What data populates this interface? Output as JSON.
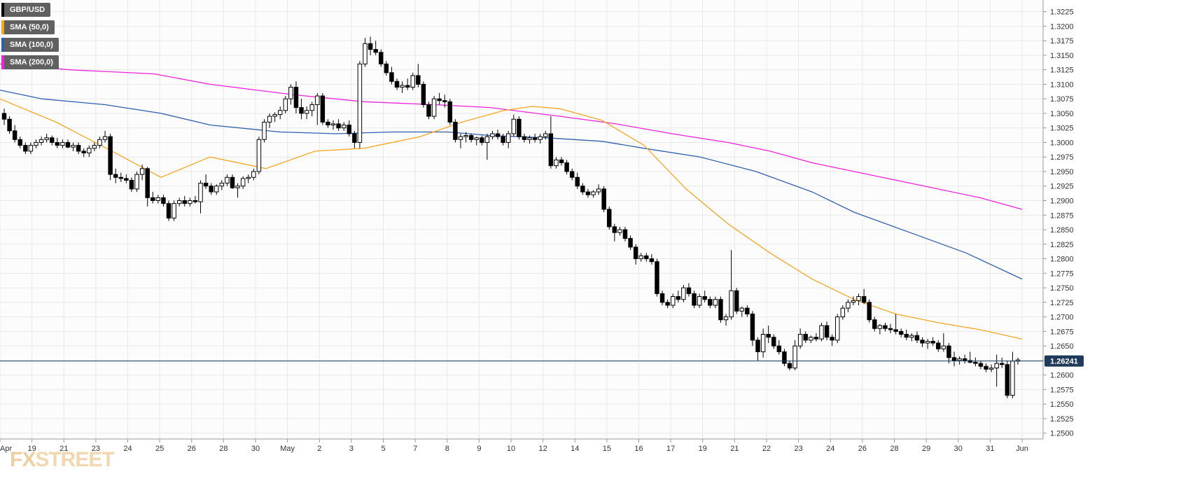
{
  "chart_data": {
    "type": "candlestick",
    "symbol": "GBP/USD",
    "legend": [
      {
        "label": "GBP/USD",
        "color": "#000000"
      },
      {
        "label": "SMA (50,0)",
        "color": "#f5a623"
      },
      {
        "label": "SMA (100,0)",
        "color": "#2e5fae"
      },
      {
        "label": "SMA (200,0)",
        "color": "#ee22dd"
      }
    ],
    "colors": {
      "up": "#ffffff",
      "down": "#000000",
      "sma50": "#f5a623",
      "sma100": "#2e5fae",
      "sma200": "#ee22dd",
      "price_line": "#1f3a5a",
      "price_badge": "#1f3a5a",
      "grid": "#e8e8e8"
    },
    "ylim": [
      1.249,
      1.3245
    ],
    "y_ticks": [
      "1.2500",
      "1.2525",
      "1.2550",
      "1.2575",
      "1.2600",
      "1.2625",
      "1.2650",
      "1.2675",
      "1.2700",
      "1.2725",
      "1.2750",
      "1.2775",
      "1.2800",
      "1.2825",
      "1.2850",
      "1.2875",
      "1.2900",
      "1.2925",
      "1.2950",
      "1.2975",
      "1.3000",
      "1.3025",
      "1.3050",
      "1.3075",
      "1.3100",
      "1.3125",
      "1.3150",
      "1.3175",
      "1.3200",
      "1.3225"
    ],
    "x_ticks": [
      "Apr",
      "19",
      "21",
      "23",
      "24",
      "25",
      "26",
      "28",
      "30",
      "May",
      "2",
      "3",
      "5",
      "7",
      "8",
      "9",
      "10",
      "12",
      "14",
      "15",
      "16",
      "17",
      "19",
      "21",
      "22",
      "23",
      "24",
      "26",
      "28",
      "29",
      "30",
      "31",
      "Jun"
    ],
    "current_price": "1.26241",
    "ohlc": [
      [
        1.305,
        1.3058,
        1.303,
        1.304
      ],
      [
        1.304,
        1.3045,
        1.3015,
        1.302
      ],
      [
        1.302,
        1.303,
        1.3,
        1.3005
      ],
      [
        1.3005,
        1.301,
        1.299,
        1.2995
      ],
      [
        1.2995,
        1.3,
        1.298,
        1.2985
      ],
      [
        1.2985,
        1.3,
        1.298,
        1.2995
      ],
      [
        1.2995,
        1.3005,
        1.299,
        1.3
      ],
      [
        1.3,
        1.301,
        1.2995,
        1.3005
      ],
      [
        1.3005,
        1.3015,
        1.3,
        1.3008
      ],
      [
        1.3008,
        1.3012,
        1.2995,
        1.3
      ],
      [
        1.3,
        1.3008,
        1.299,
        1.2995
      ],
      [
        1.2995,
        1.3005,
        1.299,
        1.3
      ],
      [
        1.3,
        1.3005,
        1.299,
        1.2992
      ],
      [
        1.2992,
        1.3,
        1.2985,
        1.2995
      ],
      [
        1.2995,
        1.3,
        1.298,
        1.2985
      ],
      [
        1.2985,
        1.299,
        1.2975,
        1.2982
      ],
      [
        1.2982,
        1.2995,
        1.2975,
        1.299
      ],
      [
        1.299,
        1.3,
        1.2985,
        1.2995
      ],
      [
        1.2995,
        1.301,
        1.299,
        1.3005
      ],
      [
        1.3005,
        1.302,
        1.3,
        1.301
      ],
      [
        1.301,
        1.3015,
        1.2935,
        1.2945
      ],
      [
        1.2945,
        1.2955,
        1.293,
        1.294
      ],
      [
        1.294,
        1.2948,
        1.2932,
        1.2938
      ],
      [
        1.2938,
        1.2945,
        1.293,
        1.2935
      ],
      [
        1.2935,
        1.294,
        1.2915,
        1.292
      ],
      [
        1.292,
        1.295,
        1.2915,
        1.2945
      ],
      [
        1.2945,
        1.2962,
        1.2935,
        1.2955
      ],
      [
        1.2955,
        1.2958,
        1.289,
        1.2905
      ],
      [
        1.2905,
        1.2915,
        1.2895,
        1.29
      ],
      [
        1.29,
        1.291,
        1.2895,
        1.2905
      ],
      [
        1.2905,
        1.291,
        1.289,
        1.2895
      ],
      [
        1.2895,
        1.29,
        1.2865,
        1.287
      ],
      [
        1.287,
        1.29,
        1.2865,
        1.2895
      ],
      [
        1.2895,
        1.2905,
        1.289,
        1.29
      ],
      [
        1.29,
        1.2908,
        1.289,
        1.2895
      ],
      [
        1.2895,
        1.2905,
        1.289,
        1.29
      ],
      [
        1.29,
        1.2908,
        1.2895,
        1.2898
      ],
      [
        1.2898,
        1.2935,
        1.2878,
        1.293
      ],
      [
        1.293,
        1.2945,
        1.292,
        1.2925
      ],
      [
        1.2925,
        1.293,
        1.291,
        1.2915
      ],
      [
        1.2915,
        1.2928,
        1.291,
        1.2925
      ],
      [
        1.2925,
        1.2935,
        1.2918,
        1.293
      ],
      [
        1.293,
        1.2945,
        1.2925,
        1.294
      ],
      [
        1.294,
        1.2945,
        1.292,
        1.2922
      ],
      [
        1.2922,
        1.293,
        1.2905,
        1.2925
      ],
      [
        1.2925,
        1.2942,
        1.292,
        1.2938
      ],
      [
        1.2938,
        1.2945,
        1.293,
        1.294
      ],
      [
        1.294,
        1.2955,
        1.2935,
        1.295
      ],
      [
        1.295,
        1.301,
        1.2945,
        1.3005
      ],
      [
        1.3005,
        1.304,
        1.3,
        1.3035
      ],
      [
        1.3035,
        1.305,
        1.3025,
        1.3045
      ],
      [
        1.3045,
        1.3052,
        1.3035,
        1.3048
      ],
      [
        1.3048,
        1.3062,
        1.304,
        1.3055
      ],
      [
        1.3055,
        1.308,
        1.305,
        1.3075
      ],
      [
        1.3075,
        1.31,
        1.3065,
        1.3095
      ],
      [
        1.3095,
        1.3105,
        1.305,
        1.306
      ],
      [
        1.306,
        1.3075,
        1.304,
        1.305
      ],
      [
        1.305,
        1.3062,
        1.304,
        1.3055
      ],
      [
        1.3055,
        1.307,
        1.3045,
        1.3065
      ],
      [
        1.3065,
        1.3085,
        1.303,
        1.308
      ],
      [
        1.308,
        1.3085,
        1.303,
        1.3035
      ],
      [
        1.3035,
        1.304,
        1.3025,
        1.303
      ],
      [
        1.303,
        1.3038,
        1.3022,
        1.3032
      ],
      [
        1.3032,
        1.304,
        1.302,
        1.3025
      ],
      [
        1.3025,
        1.3035,
        1.302,
        1.303
      ],
      [
        1.303,
        1.3038,
        1.301,
        1.3015
      ],
      [
        1.3015,
        1.302,
        1.299,
        1.3
      ],
      [
        1.3,
        1.314,
        1.299,
        1.3135
      ],
      [
        1.3135,
        1.318,
        1.313,
        1.317
      ],
      [
        1.317,
        1.3182,
        1.315,
        1.316
      ],
      [
        1.316,
        1.3175,
        1.315,
        1.3155
      ],
      [
        1.3155,
        1.316,
        1.313,
        1.3135
      ],
      [
        1.3135,
        1.314,
        1.3115,
        1.312
      ],
      [
        1.312,
        1.313,
        1.31,
        1.3105
      ],
      [
        1.3105,
        1.311,
        1.309,
        1.3095
      ],
      [
        1.3095,
        1.3105,
        1.3085,
        1.3098
      ],
      [
        1.3098,
        1.311,
        1.309,
        1.3095
      ],
      [
        1.3095,
        1.312,
        1.309,
        1.3115
      ],
      [
        1.3115,
        1.3135,
        1.3095,
        1.31
      ],
      [
        1.31,
        1.3105,
        1.306,
        1.3065
      ],
      [
        1.3065,
        1.307,
        1.304,
        1.3045
      ],
      [
        1.3045,
        1.308,
        1.304,
        1.3075
      ],
      [
        1.3075,
        1.3085,
        1.3065,
        1.3072
      ],
      [
        1.3072,
        1.3082,
        1.306,
        1.307
      ],
      [
        1.307,
        1.3075,
        1.303,
        1.3035
      ],
      [
        1.3035,
        1.304,
        1.3,
        1.3005
      ],
      [
        1.3005,
        1.3015,
        1.299,
        1.301
      ],
      [
        1.301,
        1.3018,
        1.3,
        1.3012
      ],
      [
        1.3012,
        1.3015,
        1.3,
        1.3005
      ],
      [
        1.3005,
        1.301,
        1.2995,
        1.3008
      ],
      [
        1.3008,
        1.3012,
        1.2995,
        1.3
      ],
      [
        1.3,
        1.3015,
        1.297,
        1.301
      ],
      [
        1.301,
        1.302,
        1.3005,
        1.3015
      ],
      [
        1.3015,
        1.3022,
        1.3005,
        1.301
      ],
      [
        1.301,
        1.3015,
        1.2995,
        1.3
      ],
      [
        1.3,
        1.302,
        1.299,
        1.3015
      ],
      [
        1.3015,
        1.3048,
        1.301,
        1.304
      ],
      [
        1.304,
        1.3045,
        1.3005,
        1.301
      ],
      [
        1.301,
        1.3015,
        1.3,
        1.3005
      ],
      [
        1.3005,
        1.3012,
        1.2998,
        1.3008
      ],
      [
        1.3008,
        1.3015,
        1.3,
        1.3005
      ],
      [
        1.3005,
        1.3015,
        1.2998,
        1.301
      ],
      [
        1.301,
        1.302,
        1.3005,
        1.3015
      ],
      [
        1.3015,
        1.3045,
        1.2955,
        1.296
      ],
      [
        1.296,
        1.2975,
        1.2955,
        1.297
      ],
      [
        1.297,
        1.2975,
        1.296,
        1.2965
      ],
      [
        1.2965,
        1.297,
        1.2945,
        1.295
      ],
      [
        1.295,
        1.2955,
        1.2935,
        1.294
      ],
      [
        1.294,
        1.2948,
        1.292,
        1.2925
      ],
      [
        1.2925,
        1.293,
        1.291,
        1.2915
      ],
      [
        1.2915,
        1.292,
        1.2905,
        1.291
      ],
      [
        1.291,
        1.2918,
        1.2905,
        1.2915
      ],
      [
        1.2915,
        1.2928,
        1.291,
        1.292
      ],
      [
        1.292,
        1.2925,
        1.288,
        1.2885
      ],
      [
        1.2885,
        1.289,
        1.285,
        1.2855
      ],
      [
        1.2855,
        1.286,
        1.283,
        1.2845
      ],
      [
        1.2845,
        1.2855,
        1.284,
        1.285
      ],
      [
        1.285,
        1.2855,
        1.283,
        1.2835
      ],
      [
        1.2835,
        1.284,
        1.2815,
        1.282
      ],
      [
        1.282,
        1.2825,
        1.279,
        1.28
      ],
      [
        1.28,
        1.281,
        1.2795,
        1.2805
      ],
      [
        1.2805,
        1.281,
        1.2795,
        1.28
      ],
      [
        1.28,
        1.2808,
        1.279,
        1.2795
      ],
      [
        1.2795,
        1.28,
        1.2735,
        1.274
      ],
      [
        1.274,
        1.2745,
        1.272,
        1.2725
      ],
      [
        1.2725,
        1.273,
        1.2715,
        1.272
      ],
      [
        1.272,
        1.274,
        1.2715,
        1.2735
      ],
      [
        1.2735,
        1.2745,
        1.2725,
        1.273
      ],
      [
        1.273,
        1.2755,
        1.2725,
        1.275
      ],
      [
        1.275,
        1.2758,
        1.2735,
        1.274
      ],
      [
        1.274,
        1.2745,
        1.2715,
        1.272
      ],
      [
        1.272,
        1.274,
        1.2715,
        1.2735
      ],
      [
        1.2735,
        1.2745,
        1.2725,
        1.273
      ],
      [
        1.273,
        1.2735,
        1.2715,
        1.272
      ],
      [
        1.272,
        1.2735,
        1.2715,
        1.273
      ],
      [
        1.273,
        1.2735,
        1.269,
        1.2695
      ],
      [
        1.2695,
        1.2705,
        1.2685,
        1.27
      ],
      [
        1.27,
        1.2815,
        1.2695,
        1.2745
      ],
      [
        1.2745,
        1.275,
        1.2705,
        1.271
      ],
      [
        1.271,
        1.2718,
        1.27,
        1.2715
      ],
      [
        1.2715,
        1.272,
        1.27,
        1.2705
      ],
      [
        1.2705,
        1.271,
        1.265,
        1.266
      ],
      [
        1.266,
        1.2665,
        1.2625,
        1.264
      ],
      [
        1.264,
        1.268,
        1.263,
        1.267
      ],
      [
        1.267,
        1.2685,
        1.2655,
        1.2665
      ],
      [
        1.2665,
        1.267,
        1.2645,
        1.265
      ],
      [
        1.265,
        1.266,
        1.2635,
        1.264
      ],
      [
        1.264,
        1.2645,
        1.2615,
        1.262
      ],
      [
        1.262,
        1.2625,
        1.2608,
        1.2612
      ],
      [
        1.2612,
        1.266,
        1.2608,
        1.265
      ],
      [
        1.265,
        1.268,
        1.2645,
        1.267
      ],
      [
        1.267,
        1.2675,
        1.2655,
        1.266
      ],
      [
        1.266,
        1.2668,
        1.2655,
        1.2665
      ],
      [
        1.2665,
        1.2672,
        1.2658,
        1.2662
      ],
      [
        1.2662,
        1.269,
        1.2658,
        1.2685
      ],
      [
        1.2685,
        1.2692,
        1.266,
        1.2665
      ],
      [
        1.2665,
        1.267,
        1.265,
        1.266
      ],
      [
        1.266,
        1.2705,
        1.2655,
        1.27
      ],
      [
        1.27,
        1.272,
        1.2695,
        1.2715
      ],
      [
        1.2715,
        1.273,
        1.2708,
        1.2725
      ],
      [
        1.2725,
        1.2735,
        1.272,
        1.2728
      ],
      [
        1.2728,
        1.274,
        1.272,
        1.2735
      ],
      [
        1.2735,
        1.2748,
        1.2722,
        1.2725
      ],
      [
        1.2725,
        1.273,
        1.269,
        1.2695
      ],
      [
        1.2695,
        1.27,
        1.2675,
        1.268
      ],
      [
        1.268,
        1.2688,
        1.267,
        1.2685
      ],
      [
        1.2685,
        1.269,
        1.2675,
        1.268
      ],
      [
        1.268,
        1.2688,
        1.2672,
        1.2678
      ],
      [
        1.2678,
        1.2705,
        1.267,
        1.2675
      ],
      [
        1.2675,
        1.268,
        1.2665,
        1.267
      ],
      [
        1.267,
        1.2678,
        1.266,
        1.2665
      ],
      [
        1.2665,
        1.2672,
        1.2658,
        1.2668
      ],
      [
        1.2668,
        1.2675,
        1.2655,
        1.266
      ],
      [
        1.266,
        1.2665,
        1.2648,
        1.2655
      ],
      [
        1.2655,
        1.2662,
        1.2645,
        1.2658
      ],
      [
        1.2658,
        1.2665,
        1.265,
        1.2655
      ],
      [
        1.2655,
        1.266,
        1.264,
        1.2645
      ],
      [
        1.2645,
        1.2672,
        1.264,
        1.265
      ],
      [
        1.265,
        1.2655,
        1.262,
        1.263
      ],
      [
        1.263,
        1.264,
        1.2615,
        1.2625
      ],
      [
        1.2625,
        1.2632,
        1.2618,
        1.2628
      ],
      [
        1.2628,
        1.2635,
        1.262,
        1.2625
      ],
      [
        1.2625,
        1.264,
        1.262,
        1.2622
      ],
      [
        1.2622,
        1.263,
        1.2615,
        1.262
      ],
      [
        1.262,
        1.2625,
        1.261,
        1.2615
      ],
      [
        1.2615,
        1.262,
        1.2605,
        1.261
      ],
      [
        1.261,
        1.2618,
        1.2605,
        1.2612
      ],
      [
        1.2612,
        1.2635,
        1.258,
        1.262
      ],
      [
        1.262,
        1.263,
        1.2612,
        1.2618
      ],
      [
        1.2618,
        1.2625,
        1.256,
        1.2565
      ],
      [
        1.2565,
        1.264,
        1.256,
        1.2624
      ],
      [
        1.2624,
        1.263,
        1.2618,
        1.2626
      ]
    ],
    "sma50": [
      [
        0,
        1.3075
      ],
      [
        80,
        1.3035
      ],
      [
        160,
        1.2985
      ],
      [
        230,
        1.294
      ],
      [
        300,
        1.2975
      ],
      [
        380,
        1.2955
      ],
      [
        450,
        1.2985
      ],
      [
        520,
        1.299
      ],
      [
        600,
        1.301
      ],
      [
        660,
        1.3035
      ],
      [
        720,
        1.3055
      ],
      [
        760,
        1.3062
      ],
      [
        800,
        1.3058
      ],
      [
        860,
        1.3038
      ],
      [
        920,
        1.2995
      ],
      [
        980,
        1.292
      ],
      [
        1040,
        1.286
      ],
      [
        1100,
        1.281
      ],
      [
        1160,
        1.2765
      ],
      [
        1220,
        1.273
      ],
      [
        1280,
        1.2705
      ],
      [
        1340,
        1.269
      ],
      [
        1400,
        1.2678
      ],
      [
        1460,
        1.2662
      ]
    ],
    "sma100": [
      [
        0,
        1.309
      ],
      [
        60,
        1.3075
      ],
      [
        150,
        1.3065
      ],
      [
        230,
        1.305
      ],
      [
        300,
        1.303
      ],
      [
        400,
        1.3018
      ],
      [
        480,
        1.3015
      ],
      [
        560,
        1.3018
      ],
      [
        640,
        1.3018
      ],
      [
        700,
        1.3012
      ],
      [
        780,
        1.3008
      ],
      [
        860,
        1.3002
      ],
      [
        920,
        1.299
      ],
      [
        1000,
        1.2975
      ],
      [
        1080,
        1.295
      ],
      [
        1160,
        1.2915
      ],
      [
        1220,
        1.288
      ],
      [
        1300,
        1.2845
      ],
      [
        1380,
        1.281
      ],
      [
        1460,
        1.2765
      ]
    ],
    "sma200": [
      [
        0,
        1.3135
      ],
      [
        100,
        1.3125
      ],
      [
        220,
        1.3118
      ],
      [
        300,
        1.31
      ],
      [
        420,
        1.3082
      ],
      [
        520,
        1.307
      ],
      [
        620,
        1.3065
      ],
      [
        700,
        1.306
      ],
      [
        800,
        1.3045
      ],
      [
        880,
        1.3032
      ],
      [
        960,
        1.3015
      ],
      [
        1040,
        1.3
      ],
      [
        1100,
        1.2985
      ],
      [
        1160,
        1.2965
      ],
      [
        1240,
        1.2945
      ],
      [
        1320,
        1.2925
      ],
      [
        1400,
        1.2905
      ],
      [
        1460,
        1.2885
      ]
    ]
  },
  "watermark": {
    "fx": "FX",
    "street": "STREET"
  }
}
